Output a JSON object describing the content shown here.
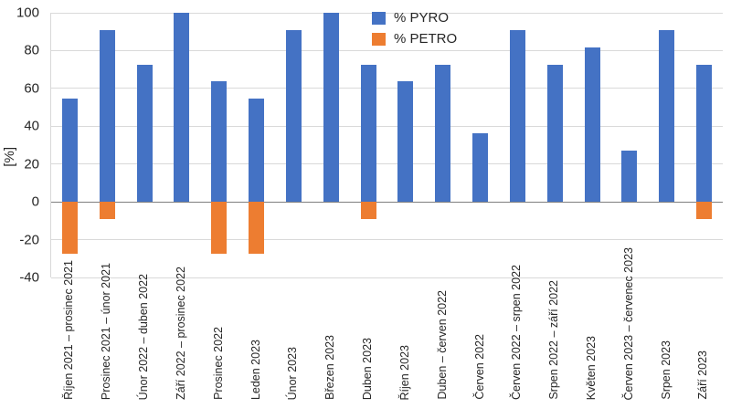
{
  "figure": {
    "y_axis_title": "[%]",
    "background": "#FFFFFF"
  },
  "legend": {
    "items": [
      {
        "label": "% PYRO",
        "color": "#4472C4"
      },
      {
        "label": "% PETRO",
        "color": "#ED7D31"
      }
    ]
  },
  "axes": {
    "y_ticks": [
      100,
      80,
      60,
      40,
      20,
      0,
      -20,
      -40
    ],
    "gridline_color": "#D9D9D9",
    "zero_line_color": "#7F7F7F",
    "axis_line_color": "#D9D9D9"
  },
  "chart_data": {
    "type": "bar",
    "title": "",
    "xlabel": "",
    "ylabel": "[%]",
    "ylim": [
      -40,
      100
    ],
    "grid": true,
    "legend_position": "top-center",
    "categories": [
      "Říjen 2021 – prosinec 2021",
      "Prosinec 2021 – únor 2021",
      "Únor 2022 – duben 2022",
      "Září 2022 – prosinec 2022",
      "Prosinec 2022",
      "Leden 2023",
      "Únor 2023",
      "Březen 2023",
      "Duben 2023",
      "Říjen 2023",
      "Duben – červen 2022",
      "Červen 2022",
      "Červen 2022 – srpen 2022",
      "Srpen 2022 – září 2022",
      "Květen 2023",
      "Červen 2023 – červenec 2023",
      "Srpen 2023",
      "Září 2023"
    ],
    "series": [
      {
        "name": "% PYRO",
        "color": "#4472C4",
        "values": [
          54.5,
          90.9,
          72.7,
          100,
          63.6,
          54.5,
          90.9,
          100,
          72.7,
          63.6,
          72.7,
          36.4,
          90.9,
          72.7,
          81.8,
          27.3,
          90.9,
          72.7
        ]
      },
      {
        "name": "% PETRO",
        "color": "#ED7D31",
        "values": [
          -27.3,
          -9.1,
          0,
          0,
          -27.3,
          -27.3,
          0,
          0,
          -9.1,
          0,
          0,
          0,
          0,
          0,
          0,
          0,
          0,
          -9.1
        ]
      }
    ]
  }
}
